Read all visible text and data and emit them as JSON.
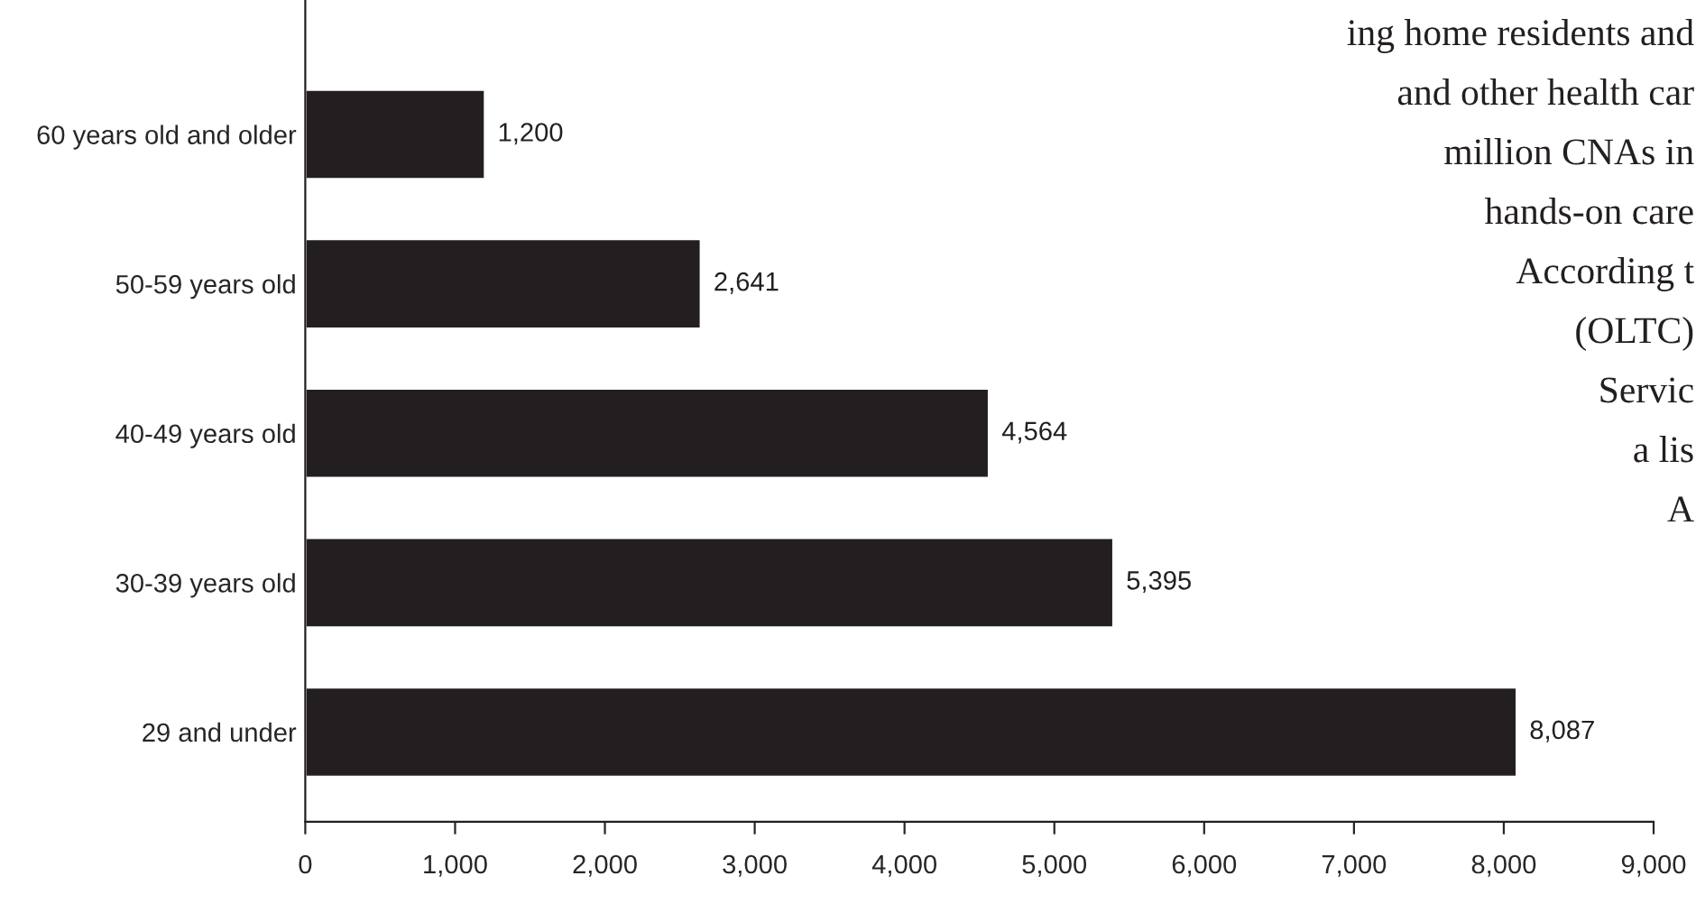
{
  "chart_data": {
    "type": "bar",
    "orientation": "horizontal",
    "categories": [
      "60 years old and older",
      "50-59 years old",
      "40-49 years old",
      "30-39 years old",
      "29 and under"
    ],
    "values": [
      1200,
      2641,
      4564,
      5395,
      8087
    ],
    "color": "#231f20",
    "value_labels": [
      "1,200",
      "2,641",
      "4,564",
      "5,395",
      "8,087"
    ],
    "xlim": [
      0,
      9000
    ],
    "xticks": [
      {
        "value": 0,
        "label": "0"
      },
      {
        "value": 1000,
        "label": "1,000"
      },
      {
        "value": 2000,
        "label": "2,000"
      },
      {
        "value": 3000,
        "label": "3,000"
      },
      {
        "value": 4000,
        "label": "4,000"
      },
      {
        "value": 5000,
        "label": "5,000"
      },
      {
        "value": 6000,
        "label": "6,000"
      },
      {
        "value": 7000,
        "label": "7,000"
      },
      {
        "value": 8000,
        "label": "8,000"
      },
      {
        "value": 9000,
        "label": "9,000"
      }
    ],
    "grid": false,
    "annotations": [
      "ing home residents and",
      "and other health car",
      "million CNAs in",
      "hands-on care",
      "According t",
      "(OLTC)",
      "Servic",
      "a lis",
      "A"
    ]
  }
}
